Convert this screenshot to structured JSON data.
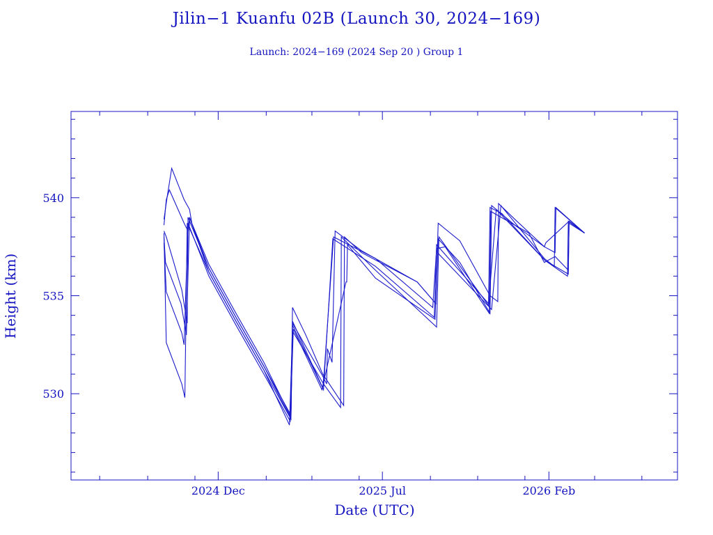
{
  "chart_data": {
    "type": "line",
    "title": "Jilin−1 Kuanfu 02B (Launch 30, 2024−169)",
    "subtitle": "Launch: 2024−169  (2024 Sep 20 )  Group 1",
    "xlabel": "Date (UTC)",
    "ylabel": "Height (km)",
    "xlim": [
      "2024-05-25",
      "2026-07-17"
    ],
    "ylim": [
      525.6,
      544.4
    ],
    "x_ticks": [
      {
        "date": "2024-12-01",
        "label": "2024 Dec"
      },
      {
        "date": "2025-07-01",
        "label": "2025 Jul"
      },
      {
        "date": "2026-02-01",
        "label": "2026 Feb"
      }
    ],
    "x_minor_ticks": [
      "2024-07-01",
      "2024-09-01",
      "2024-11-01",
      "2025-02-01",
      "2025-04-01",
      "2025-06-01",
      "2025-09-01",
      "2025-11-01",
      "2026-01-01",
      "2026-04-01",
      "2026-06-01"
    ],
    "y_ticks": [
      530,
      535,
      540
    ],
    "y_minor_step": 1,
    "grid": false,
    "line_color": "#1a1acc",
    "axis_color": "#1414c0",
    "series": [
      {
        "points": [
          [
            "2024-09-22",
            538.9
          ],
          [
            "2024-09-26",
            540.0
          ],
          [
            "2024-10-02",
            541.5
          ],
          [
            "2024-10-18",
            539.9
          ],
          [
            "2024-10-25",
            539.4
          ],
          [
            "2024-10-28",
            538.7
          ],
          [
            "2024-11-19",
            536.6
          ],
          [
            "2024-12-24",
            534.1
          ],
          [
            "2025-01-29",
            531.6
          ],
          [
            "2025-03-05",
            528.8
          ],
          [
            "2025-03-07",
            534.4
          ],
          [
            "2025-03-24",
            533.0
          ],
          [
            "2025-04-15",
            531.0
          ],
          [
            "2025-05-12",
            529.4
          ],
          [
            "2025-05-13",
            538.0
          ],
          [
            "2025-06-04",
            537.2
          ],
          [
            "2025-08-15",
            535.7
          ],
          [
            "2025-09-08",
            534.6
          ],
          [
            "2025-09-11",
            538.7
          ],
          [
            "2025-10-09",
            537.8
          ],
          [
            "2025-11-17",
            535.0
          ],
          [
            "2025-11-27",
            534.7
          ],
          [
            "2025-11-28",
            539.7
          ],
          [
            "2025-12-19",
            538.9
          ],
          [
            "2026-01-26",
            537.5
          ],
          [
            "2026-02-09",
            537.2
          ],
          [
            "2026-02-10",
            539.5
          ],
          [
            "2026-02-27",
            538.9
          ],
          [
            "2026-03-19",
            538.2
          ]
        ]
      },
      {
        "points": [
          [
            "2024-09-22",
            538.6
          ],
          [
            "2024-09-25",
            539.9
          ],
          [
            "2024-09-29",
            540.4
          ],
          [
            "2024-10-18",
            538.7
          ],
          [
            "2024-10-23",
            538.3
          ],
          [
            "2024-10-25",
            539.0
          ],
          [
            "2024-11-19",
            536.4
          ],
          [
            "2024-12-24",
            533.9
          ],
          [
            "2025-01-29",
            531.4
          ],
          [
            "2025-03-05",
            528.9
          ],
          [
            "2025-03-07",
            533.6
          ],
          [
            "2025-04-15",
            530.9
          ],
          [
            "2025-04-20",
            530.5
          ],
          [
            "2025-04-21",
            532.3
          ],
          [
            "2025-04-27",
            531.6
          ],
          [
            "2025-05-01",
            538.3
          ],
          [
            "2025-06-04",
            537.3
          ],
          [
            "2025-08-15",
            535.7
          ],
          [
            "2025-09-08",
            534.6
          ],
          [
            "2025-09-11",
            537.9
          ],
          [
            "2025-10-09",
            536.7
          ],
          [
            "2025-11-17",
            534.1
          ],
          [
            "2025-11-19",
            539.6
          ],
          [
            "2025-12-19",
            538.6
          ],
          [
            "2026-01-26",
            537.5
          ],
          [
            "2026-01-28",
            537.7
          ],
          [
            "2026-02-27",
            538.8
          ],
          [
            "2026-03-19",
            538.2
          ]
        ]
      },
      {
        "points": [
          [
            "2024-09-22",
            538.3
          ],
          [
            "2024-09-25",
            538.0
          ],
          [
            "2024-10-15",
            535.3
          ],
          [
            "2024-10-22",
            533.6
          ],
          [
            "2024-10-23",
            539.0
          ],
          [
            "2024-11-19",
            536.4
          ],
          [
            "2024-12-24",
            533.9
          ],
          [
            "2025-01-29",
            531.4
          ],
          [
            "2025-03-04",
            528.8
          ],
          [
            "2025-03-07",
            533.7
          ],
          [
            "2025-04-15",
            530.3
          ],
          [
            "2025-04-17",
            531.2
          ],
          [
            "2025-04-29",
            538.0
          ],
          [
            "2025-06-22",
            536.9
          ],
          [
            "2025-09-04",
            534.4
          ],
          [
            "2025-09-09",
            537.4
          ],
          [
            "2025-09-20",
            537.5
          ],
          [
            "2025-11-16",
            534.1
          ],
          [
            "2025-11-18",
            539.3
          ],
          [
            "2026-01-06",
            538.2
          ],
          [
            "2026-01-26",
            536.7
          ],
          [
            "2026-02-09",
            537.0
          ],
          [
            "2026-02-26",
            536.3
          ],
          [
            "2026-02-27",
            538.8
          ],
          [
            "2026-03-19",
            538.2
          ]
        ]
      },
      {
        "points": [
          [
            "2024-09-22",
            538.0
          ],
          [
            "2024-09-24",
            536.7
          ],
          [
            "2024-10-14",
            534.6
          ],
          [
            "2024-10-21",
            533.0
          ],
          [
            "2024-10-25",
            539.0
          ],
          [
            "2024-11-19",
            536.2
          ],
          [
            "2024-12-24",
            533.7
          ],
          [
            "2025-01-29",
            531.2
          ],
          [
            "2025-03-05",
            528.7
          ],
          [
            "2025-03-07",
            533.5
          ],
          [
            "2025-04-16",
            530.2
          ],
          [
            "2025-04-28",
            537.9
          ],
          [
            "2025-06-22",
            536.5
          ],
          [
            "2025-09-06",
            533.9
          ],
          [
            "2025-09-09",
            537.6
          ],
          [
            "2025-11-15",
            534.6
          ],
          [
            "2025-11-17",
            539.5
          ],
          [
            "2025-12-02",
            539.2
          ],
          [
            "2026-01-27",
            536.8
          ],
          [
            "2026-02-26",
            536.1
          ],
          [
            "2026-02-27",
            538.7
          ],
          [
            "2026-03-19",
            538.2
          ]
        ]
      },
      {
        "points": [
          [
            "2024-09-22",
            538.2
          ],
          [
            "2024-09-25",
            532.6
          ],
          [
            "2024-10-15",
            530.5
          ],
          [
            "2024-10-19",
            529.8
          ],
          [
            "2024-10-22",
            538.7
          ],
          [
            "2024-11-19",
            536.2
          ],
          [
            "2024-12-24",
            533.7
          ],
          [
            "2025-01-29",
            531.2
          ],
          [
            "2025-03-03",
            528.4
          ],
          [
            "2025-03-07",
            533.2
          ],
          [
            "2025-04-16",
            530.5
          ],
          [
            "2025-05-08",
            529.3
          ],
          [
            "2025-05-09",
            538.0
          ],
          [
            "2025-06-22",
            536.3
          ],
          [
            "2025-09-09",
            533.4
          ],
          [
            "2025-09-12",
            538.0
          ],
          [
            "2025-11-15",
            534.5
          ],
          [
            "2025-11-25",
            539.4
          ],
          [
            "2026-01-27",
            536.8
          ],
          [
            "2026-02-25",
            536.0
          ],
          [
            "2026-02-26",
            538.8
          ],
          [
            "2026-03-19",
            538.2
          ]
        ]
      },
      {
        "points": [
          [
            "2024-09-22",
            537.7
          ],
          [
            "2024-09-25",
            535.2
          ],
          [
            "2024-10-15",
            533.1
          ],
          [
            "2024-10-18",
            532.5
          ],
          [
            "2024-10-23",
            538.7
          ],
          [
            "2024-11-19",
            536.0
          ],
          [
            "2024-12-24",
            533.5
          ],
          [
            "2025-01-29",
            531.0
          ],
          [
            "2025-03-04",
            528.6
          ],
          [
            "2025-03-08",
            533.3
          ],
          [
            "2025-04-14",
            530.2
          ],
          [
            "2025-05-15",
            535.7
          ],
          [
            "2025-05-16",
            535.7
          ],
          [
            "2025-05-17",
            537.6
          ],
          [
            "2025-06-22",
            535.9
          ],
          [
            "2025-09-07",
            533.8
          ],
          [
            "2025-09-10",
            537.2
          ],
          [
            "2025-11-19",
            534.3
          ],
          [
            "2025-12-01",
            539.6
          ],
          [
            "2026-01-26",
            536.9
          ],
          [
            "2026-02-08",
            536.5
          ],
          [
            "2026-02-09",
            539.5
          ],
          [
            "2026-03-19",
            538.2
          ]
        ]
      }
    ]
  }
}
